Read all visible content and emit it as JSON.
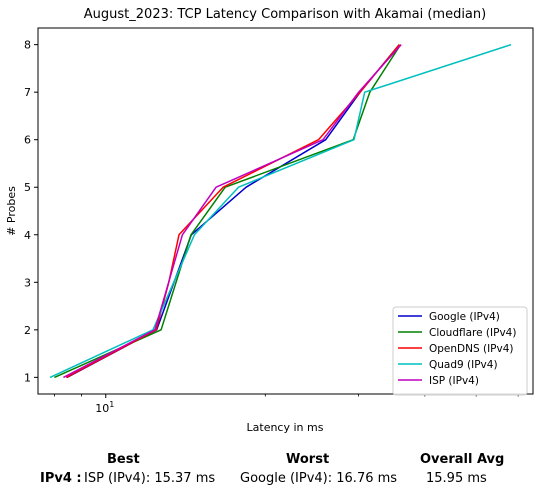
{
  "chart_data": {
    "type": "line",
    "title": "August_2023: TCP Latency Comparison with Akamai (median)",
    "xlabel": "Latency in ms",
    "ylabel": "# Probes",
    "x_scale": "log",
    "xlim": [
      7.45,
      64.0
    ],
    "ylim": [
      0.65,
      8.35
    ],
    "y_ticks": [
      "1",
      "2",
      "3",
      "4",
      "5",
      "6",
      "7",
      "8"
    ],
    "x_ticks": [
      {
        "value": 10,
        "base": "10",
        "exp": "1"
      }
    ],
    "grid": false,
    "legend_position": "lower right",
    "series": [
      {
        "name": "Google (IPv4)",
        "color": "#0000cc",
        "x": [
          8.45,
          12.48,
          14.5,
          18.4,
          26.0,
          30.2,
          35.8
        ],
        "y": [
          1,
          2,
          4,
          5,
          6,
          7,
          8
        ]
      },
      {
        "name": "Cloudflare (IPv4)",
        "color": "#008000",
        "x": [
          8.0,
          12.72,
          14.48,
          16.8,
          29.3,
          31.5,
          36.0
        ],
        "y": [
          1,
          2,
          4,
          5,
          6,
          7,
          8
        ]
      },
      {
        "name": "OpenDNS (IPv4)",
        "color": "#ff0000",
        "x": [
          8.42,
          12.45,
          13.15,
          13.75,
          16.65,
          25.2,
          30.2,
          35.8
        ],
        "y": [
          1,
          2,
          3,
          4,
          5,
          6,
          7,
          8
        ]
      },
      {
        "name": "Quad9 (IPv4)",
        "color": "#00bfbf",
        "x": [
          7.85,
          12.28,
          14.7,
          17.8,
          29.4,
          30.8,
          58.2
        ],
        "y": [
          1,
          2,
          4,
          5,
          6,
          7,
          8
        ]
      },
      {
        "name": "ISP (IPv4)",
        "color": "#bf00bf",
        "x": [
          8.32,
          12.38,
          13.95,
          16.15,
          25.7,
          30.0,
          36.1
        ],
        "y": [
          1,
          2,
          4,
          5,
          6,
          7,
          8
        ]
      }
    ]
  },
  "summary": {
    "best_header": "Best",
    "worst_header": "Worst",
    "avg_header": "Overall Avg",
    "row_label": "IPv4 :",
    "best_value": "ISP (IPv4): 15.37 ms",
    "worst_value": "Google (IPv4): 16.76 ms",
    "avg_value": "15.95 ms"
  }
}
